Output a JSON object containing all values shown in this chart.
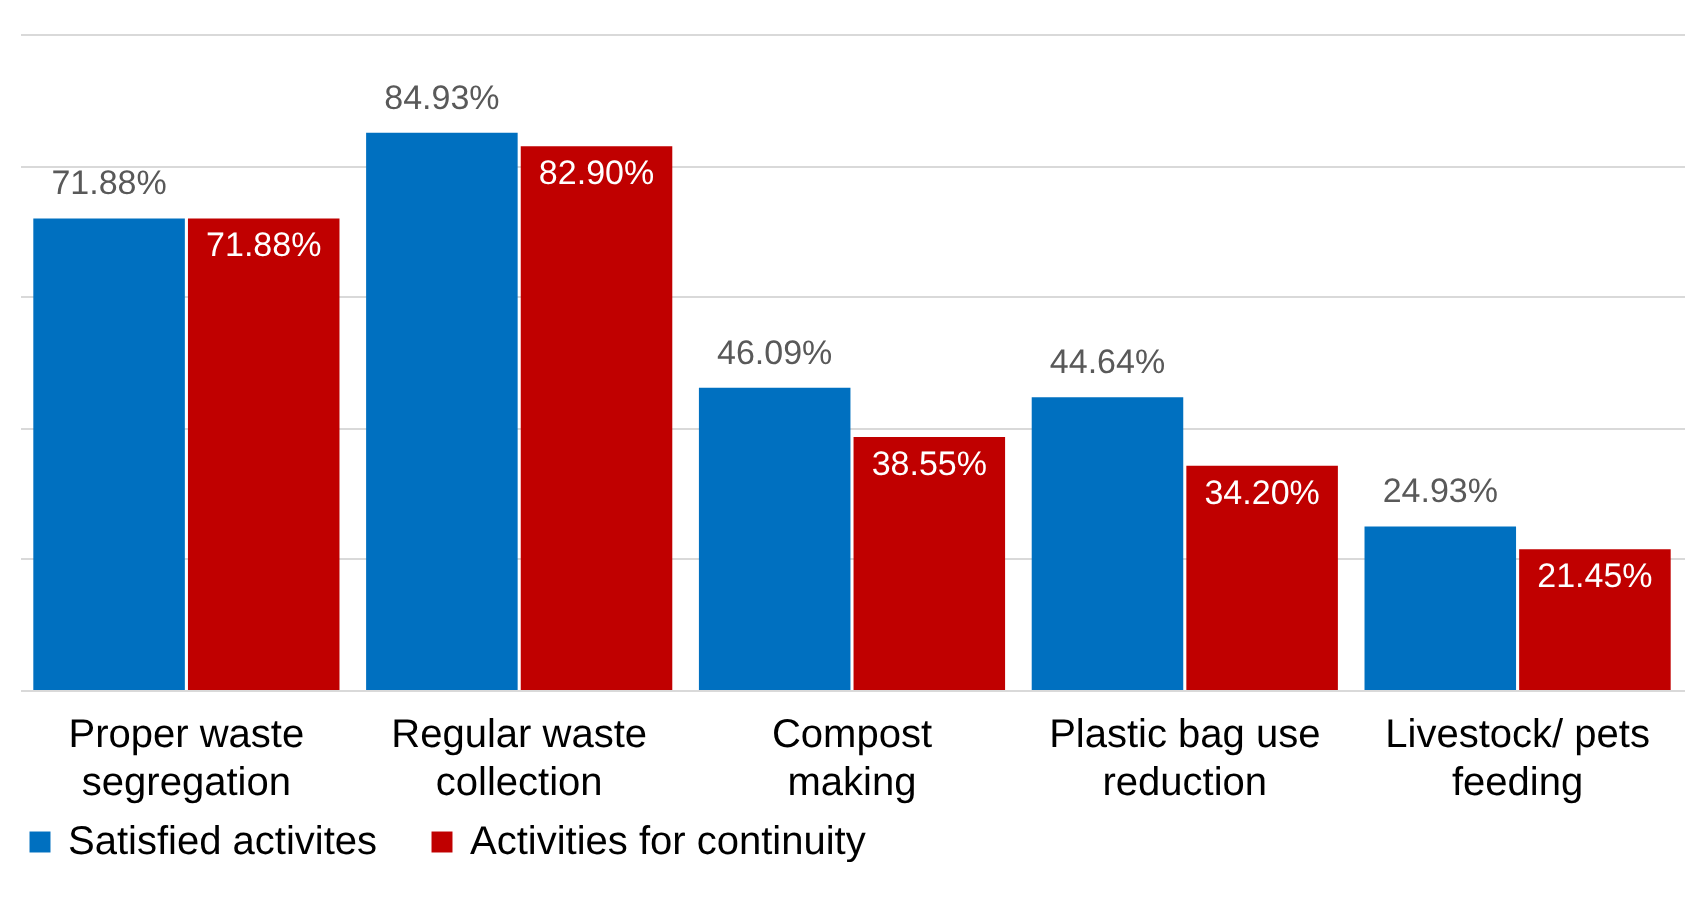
{
  "chart_data": {
    "type": "bar",
    "categories": [
      "Proper waste segregation",
      "Regular waste collection",
      "Compost making",
      "Plastic bag use reduction",
      "Livestock/ pets feeding"
    ],
    "series": [
      {
        "name": "Satisfied activites",
        "color": "#0070c0",
        "values": [
          71.88,
          84.93,
          46.09,
          44.64,
          24.93
        ],
        "value_labels": [
          "71.88%",
          "84.93%",
          "46.09%",
          "44.64%",
          "24.93%"
        ]
      },
      {
        "name": "Activities for continuity",
        "color": "#c00000",
        "values": [
          71.88,
          82.9,
          38.55,
          34.2,
          21.45
        ],
        "value_labels": [
          "71.88%",
          "82.90%",
          "38.55%",
          "34.20%",
          "21.45%"
        ]
      }
    ],
    "ylim": [
      0,
      100
    ],
    "yticks": [
      {
        "value": 0,
        "label": null
      },
      {
        "value": 20,
        "label": null
      },
      {
        "value": 40,
        "label": null
      },
      {
        "value": 60,
        "label": null
      },
      {
        "value": 80,
        "label": null
      },
      {
        "value": 100,
        "label": null
      }
    ],
    "grid": "y",
    "legend": "bottom"
  }
}
